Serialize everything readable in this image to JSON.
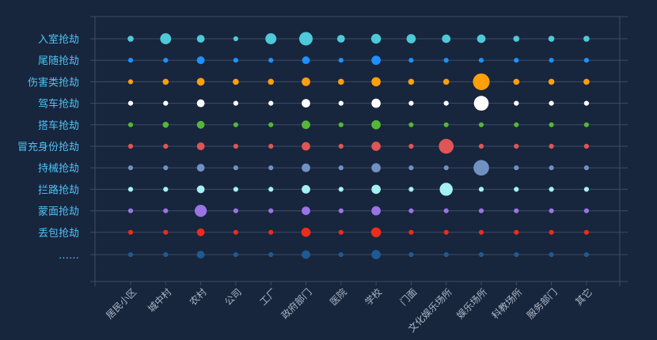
{
  "chart_data": {
    "type": "scatter",
    "title": "",
    "xlabel": "",
    "ylabel": "",
    "grid": true,
    "categories": [
      "居民小区",
      "城中村",
      "农村",
      "公司",
      "工厂",
      "政府部门",
      "医院",
      "学校",
      "门面",
      "文化娱乐场所",
      "娱乐场所",
      "科教场所",
      "服务部门",
      "其它"
    ],
    "rows": [
      "入室抢劫",
      "尾随抢劫",
      "伤害类抢劫",
      "驾车抢劫",
      "搭车抢劫",
      "冒充身份抢劫",
      "持械抢劫",
      "拦路抢劫",
      "蒙面抢劫",
      "丢包抢劫",
      "……"
    ],
    "colors": [
      "#4ec9d8",
      "#1e90ff",
      "#ff9f0a",
      "#ffffff",
      "#55b737",
      "#e05555",
      "#7191c2",
      "#a5f0f5",
      "#9a74e4",
      "#ee2c1b",
      "#1f5a94"
    ],
    "values": [
      [
        3,
        10,
        5,
        2,
        10,
        15,
        5,
        8,
        7,
        6,
        6,
        3,
        3,
        3
      ],
      [
        2,
        2,
        5,
        2,
        2,
        5,
        2,
        7,
        2,
        2,
        2,
        2,
        2,
        2
      ],
      [
        2,
        3,
        5,
        3,
        3,
        6,
        3,
        7,
        3,
        3,
        23,
        3,
        3,
        3
      ],
      [
        2,
        2,
        5,
        2,
        2,
        6,
        2,
        7,
        2,
        2,
        18,
        2,
        2,
        2
      ],
      [
        2,
        3,
        5,
        2,
        2,
        6,
        2,
        7,
        2,
        2,
        2,
        2,
        2,
        2
      ],
      [
        2,
        2,
        5,
        2,
        2,
        6,
        2,
        7,
        2,
        18,
        2,
        2,
        2,
        2
      ],
      [
        2,
        2,
        5,
        2,
        2,
        6,
        2,
        7,
        2,
        2,
        20,
        2,
        2,
        2
      ],
      [
        2,
        2,
        5,
        2,
        2,
        6,
        2,
        7,
        2,
        14,
        2,
        2,
        2,
        2
      ],
      [
        2,
        2,
        12,
        2,
        2,
        6,
        2,
        7,
        2,
        2,
        2,
        2,
        2,
        2
      ],
      [
        2,
        2,
        5,
        2,
        2,
        7,
        2,
        8,
        2,
        2,
        2,
        2,
        2,
        2
      ],
      [
        2,
        2,
        5,
        2,
        2,
        6,
        2,
        7,
        2,
        2,
        2,
        2,
        2,
        2
      ]
    ]
  }
}
